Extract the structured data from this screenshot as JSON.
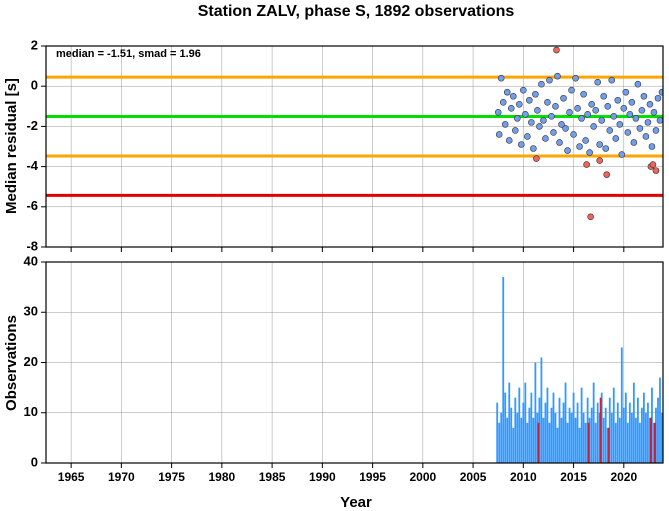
{
  "chart_data": [
    {
      "type": "scatter",
      "title": "Station ZALV, phase S, 1892 observations",
      "ylabel": "Median residual [s]",
      "annotation": "median = -1.51, smad = 1.96",
      "xlim": [
        1962.5,
        2023.9
      ],
      "xticks": [
        1965,
        1970,
        1975,
        1980,
        1985,
        1990,
        1995,
        2000,
        2005,
        2010,
        2015,
        2020
      ],
      "ylim": [
        -8,
        2
      ],
      "yticks": [
        -8,
        -6,
        -4,
        -2,
        0,
        2
      ],
      "grid": true,
      "hlines": [
        {
          "value": 0.45,
          "color": "#ffa500"
        },
        {
          "value": -1.51,
          "color": "#00e000"
        },
        {
          "value": -3.47,
          "color": "#ffa500"
        },
        {
          "value": -5.43,
          "color": "#e00000"
        }
      ],
      "series": [
        {
          "color": "#6f9eef",
          "x": [
            2007.5,
            2007.6,
            2007.8,
            2008.0,
            2008.2,
            2008.4,
            2008.6,
            2008.8,
            2009.0,
            2009.2,
            2009.4,
            2009.6,
            2009.8,
            2010.0,
            2010.2,
            2010.4,
            2010.6,
            2010.8,
            2011.0,
            2011.2,
            2011.4,
            2011.6,
            2011.8,
            2012.0,
            2012.2,
            2012.4,
            2012.6,
            2012.8,
            2013.0,
            2013.2,
            2013.4,
            2013.6,
            2013.8,
            2014.0,
            2014.2,
            2014.4,
            2014.6,
            2014.8,
            2015.0,
            2015.2,
            2015.4,
            2015.6,
            2015.8,
            2016.0,
            2016.2,
            2016.4,
            2016.6,
            2016.8,
            2017.0,
            2017.2,
            2017.4,
            2017.6,
            2017.8,
            2018.0,
            2018.2,
            2018.4,
            2018.6,
            2018.8,
            2019.0,
            2019.2,
            2019.4,
            2019.6,
            2019.8,
            2020.0,
            2020.2,
            2020.4,
            2020.6,
            2020.8,
            2021.0,
            2021.2,
            2021.4,
            2021.6,
            2021.8,
            2022.0,
            2022.2,
            2022.4,
            2022.6,
            2022.8,
            2023.0,
            2023.2,
            2023.4,
            2023.6,
            2023.8
          ],
          "values": [
            -1.3,
            -2.4,
            0.4,
            -0.8,
            -1.9,
            -0.3,
            -2.7,
            -1.1,
            -0.5,
            -2.2,
            -1.6,
            -0.9,
            -2.9,
            -0.2,
            -1.4,
            -2.5,
            -0.7,
            -1.8,
            -3.1,
            -0.4,
            -1.2,
            -2.0,
            0.1,
            -1.7,
            -2.6,
            -0.8,
            0.3,
            -1.5,
            -2.3,
            -1.0,
            0.5,
            -2.8,
            -1.9,
            -0.6,
            -2.1,
            -3.2,
            -1.3,
            -0.2,
            -2.4,
            0.4,
            -1.1,
            -3.0,
            -1.6,
            -0.4,
            -2.7,
            -1.4,
            -3.3,
            -0.9,
            -2.0,
            -1.2,
            0.2,
            -2.9,
            -1.7,
            -0.5,
            -3.1,
            -1.0,
            -2.2,
            0.3,
            -1.5,
            -2.6,
            -0.7,
            -1.9,
            -3.4,
            -1.1,
            -0.3,
            -2.3,
            -1.4,
            -0.8,
            -2.8,
            -1.6,
            0.1,
            -2.1,
            -1.2,
            -0.5,
            -2.5,
            -1.8,
            -0.9,
            -3.0,
            -1.3,
            -2.2,
            -0.6,
            -1.7,
            -0.3
          ]
        },
        {
          "color": "#f0645a",
          "x": [
            2011.3,
            2013.3,
            2016.3,
            2016.7,
            2017.6,
            2018.3,
            2022.7,
            2022.9,
            2023.2
          ],
          "values": [
            -3.6,
            1.8,
            -3.9,
            -6.5,
            -3.7,
            -4.4,
            -4.0,
            -3.9,
            -4.2
          ]
        }
      ]
    },
    {
      "type": "bar",
      "ylabel": "Observations",
      "xlabel": "Year",
      "xlim": [
        1962.5,
        2023.9
      ],
      "xticks": [
        1965,
        1970,
        1975,
        1980,
        1985,
        1990,
        1995,
        2000,
        2005,
        2010,
        2015,
        2020
      ],
      "ylim": [
        0,
        40
      ],
      "yticks": [
        0,
        10,
        20,
        30,
        40
      ],
      "grid": true,
      "series": [
        {
          "color": "#3399ff",
          "x": [
            2007.4,
            2007.6,
            2007.8,
            2008.0,
            2008.2,
            2008.4,
            2008.6,
            2008.8,
            2009.0,
            2009.2,
            2009.4,
            2009.6,
            2009.8,
            2010.0,
            2010.2,
            2010.4,
            2010.6,
            2010.8,
            2011.0,
            2011.2,
            2011.4,
            2011.6,
            2011.8,
            2012.0,
            2012.2,
            2012.4,
            2012.6,
            2012.8,
            2013.0,
            2013.2,
            2013.4,
            2013.6,
            2013.8,
            2014.0,
            2014.2,
            2014.4,
            2014.6,
            2014.8,
            2015.0,
            2015.2,
            2015.4,
            2015.6,
            2015.8,
            2016.0,
            2016.2,
            2016.4,
            2016.6,
            2016.8,
            2017.0,
            2017.2,
            2017.4,
            2017.6,
            2017.8,
            2018.0,
            2018.2,
            2018.4,
            2018.6,
            2018.8,
            2019.0,
            2019.2,
            2019.4,
            2019.6,
            2019.8,
            2020.0,
            2020.2,
            2020.4,
            2020.6,
            2020.8,
            2021.0,
            2021.2,
            2021.4,
            2021.6,
            2021.8,
            2022.0,
            2022.2,
            2022.4,
            2022.6,
            2022.8,
            2023.0,
            2023.2,
            2023.4,
            2023.6,
            2023.8
          ],
          "values": [
            12,
            8,
            10,
            37,
            14,
            9,
            16,
            11,
            7,
            13,
            10,
            15,
            9,
            12,
            16,
            8,
            11,
            14,
            9,
            20,
            10,
            13,
            21,
            9,
            12,
            15,
            8,
            11,
            14,
            10,
            7,
            13,
            9,
            12,
            16,
            8,
            11,
            10,
            14,
            9,
            12,
            7,
            15,
            10,
            8,
            13,
            9,
            11,
            16,
            8,
            12,
            10,
            14,
            9,
            11,
            7,
            13,
            10,
            15,
            8,
            12,
            9,
            23,
            11,
            14,
            8,
            12,
            10,
            16,
            9,
            13,
            8,
            11,
            14,
            10,
            12,
            9,
            15,
            8,
            11,
            13,
            17,
            10
          ]
        },
        {
          "color": "#cc2233",
          "x": [
            2011.5,
            2016.5,
            2017.7,
            2018.5,
            2022.7,
            2023.1
          ],
          "values": [
            8,
            8,
            13,
            7,
            9,
            8
          ]
        }
      ]
    }
  ]
}
